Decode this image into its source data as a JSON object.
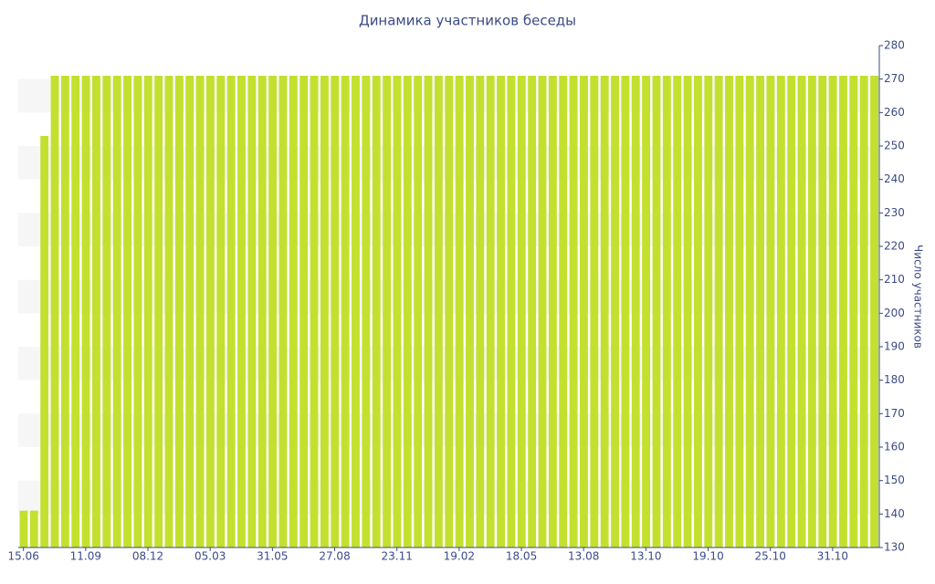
{
  "chart_data": {
    "type": "bar",
    "title": "Динамика участников беседы",
    "y_label": "Число участников",
    "categories": [
      "15.06",
      null,
      null,
      null,
      null,
      null,
      "11.09",
      null,
      null,
      null,
      null,
      null,
      "08.12",
      null,
      null,
      null,
      null,
      null,
      "05.03",
      null,
      null,
      null,
      null,
      null,
      "31.05",
      null,
      null,
      null,
      null,
      null,
      "27.08",
      null,
      null,
      null,
      null,
      null,
      "23.11",
      null,
      null,
      null,
      null,
      null,
      "19.02",
      null,
      null,
      null,
      null,
      null,
      "18.05",
      null,
      null,
      null,
      null,
      null,
      "13.08",
      null,
      null,
      null,
      null,
      null,
      "13.10",
      null,
      null,
      null,
      null,
      null,
      "19.10",
      null,
      null,
      null,
      null,
      null,
      "25.10",
      null,
      null,
      null,
      null,
      null,
      "31.10",
      null,
      null,
      null,
      null
    ],
    "values": [
      141,
      141,
      253,
      271,
      271,
      271,
      271,
      271,
      271,
      271,
      271,
      271,
      271,
      271,
      271,
      271,
      271,
      271,
      271,
      271,
      271,
      271,
      271,
      271,
      271,
      271,
      271,
      271,
      271,
      271,
      271,
      271,
      271,
      271,
      271,
      271,
      271,
      271,
      271,
      271,
      271,
      271,
      271,
      271,
      271,
      271,
      271,
      271,
      271,
      271,
      271,
      271,
      271,
      271,
      271,
      271,
      271,
      271,
      271,
      271,
      271,
      271,
      271,
      271,
      271,
      271,
      271,
      271,
      271,
      271,
      271,
      271,
      271,
      271,
      271,
      271,
      271,
      271,
      271,
      271,
      271,
      271,
      271
    ],
    "color": "#c3e02f",
    "ylim": [
      130,
      280
    ],
    "yticks": [
      130,
      140,
      150,
      160,
      170,
      180,
      190,
      200,
      210,
      220,
      230,
      240,
      250,
      260,
      270,
      280
    ]
  }
}
